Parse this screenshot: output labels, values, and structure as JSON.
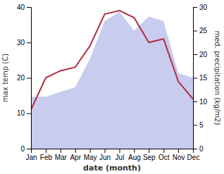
{
  "chart_data": {
    "type": "line",
    "xlabel": "date (month)",
    "ylabel": "max temp (C)",
    "y2label": "med. precipitation (kg/m2)",
    "categories": [
      "Jan",
      "Feb",
      "Mar",
      "Apr",
      "May",
      "Jun",
      "Jul",
      "Aug",
      "Sep",
      "Oct",
      "Nov",
      "Dec"
    ],
    "series": [
      {
        "type": "area",
        "axis": "y2",
        "color": "#c8ccee",
        "values": [
          11,
          11,
          12,
          13,
          19,
          27,
          29,
          25,
          28,
          27,
          16,
          15
        ]
      },
      {
        "type": "line",
        "color": "#b03040",
        "values": [
          11,
          20,
          22,
          23,
          29,
          38,
          39,
          37,
          30,
          31,
          19,
          14
        ]
      }
    ],
    "ylim": [
      0,
      40
    ],
    "yticks": [
      0,
      10,
      20,
      30,
      40
    ],
    "y2lim": [
      0,
      30
    ],
    "y2ticks": [
      0,
      5,
      10,
      15,
      20,
      25,
      30
    ],
    "grid": false
  }
}
